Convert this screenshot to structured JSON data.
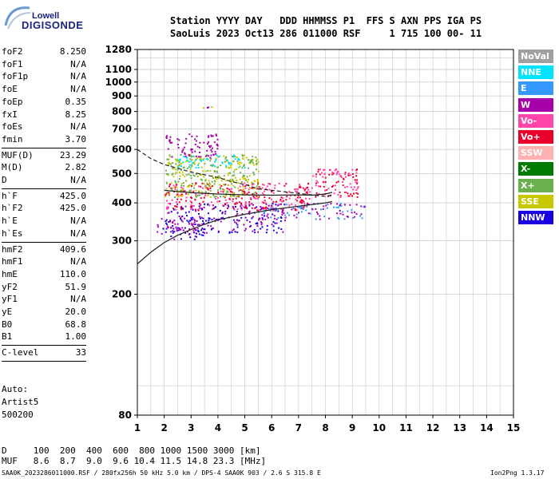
{
  "logo": {
    "top": "Lowell",
    "bottom": "DIGISONDE"
  },
  "header": {
    "line1": "Station YYYY DAY   DDD HHMMSS P1  FFS S AXN PPS IGA PS",
    "line2": "SaoLuis 2023 Oct13 286 011000 RSF     1 715 100 00- 11"
  },
  "params": [
    {
      "label": "foF2",
      "value": "8.250",
      "sep_after": false
    },
    {
      "label": "foF1",
      "value": "N/A",
      "sep_after": false
    },
    {
      "label": "foF1p",
      "value": "N/A",
      "sep_after": false
    },
    {
      "label": "foE",
      "value": "N/A",
      "sep_after": false
    },
    {
      "label": "foEp",
      "value": "0.35",
      "sep_after": false
    },
    {
      "label": "fxI",
      "value": "8.25",
      "sep_after": false
    },
    {
      "label": "foEs",
      "value": "N/A",
      "sep_after": false
    },
    {
      "label": "fmin",
      "value": "3.70",
      "sep_after": true
    },
    {
      "label": "MUF(D)",
      "value": "23.29",
      "sep_after": false
    },
    {
      "label": "M(D)",
      "value": "2.82",
      "sep_after": false
    },
    {
      "label": "D",
      "value": "N/A",
      "sep_after": true
    },
    {
      "label": "h`F",
      "value": "425.0",
      "sep_after": false
    },
    {
      "label": "h`F2",
      "value": "425.0",
      "sep_after": false
    },
    {
      "label": "h`E",
      "value": "N/A",
      "sep_after": false
    },
    {
      "label": "h`Es",
      "value": "N/A",
      "sep_after": true
    },
    {
      "label": "hmF2",
      "value": "409.6",
      "sep_after": false
    },
    {
      "label": "hmF1",
      "value": "N/A",
      "sep_after": false
    },
    {
      "label": "hmE",
      "value": "110.0",
      "sep_after": false
    },
    {
      "label": "yF2",
      "value": "51.9",
      "sep_after": false
    },
    {
      "label": "yF1",
      "value": "N/A",
      "sep_after": false
    },
    {
      "label": "yE",
      "value": "20.0",
      "sep_after": false
    },
    {
      "label": "B0",
      "value": "68.8",
      "sep_after": false
    },
    {
      "label": "B1",
      "value": "1.00",
      "sep_after": true
    },
    {
      "label": "C-level",
      "value": "33",
      "sep_after": true
    }
  ],
  "auto": {
    "line1": "Auto:",
    "line2": "Artist5",
    "line3": "500200"
  },
  "legend": [
    {
      "label": "NoVal",
      "color": "#a0a0a0"
    },
    {
      "label": "NNE",
      "color": "#00e5ff"
    },
    {
      "label": "E",
      "color": "#3399ff"
    },
    {
      "label": "W",
      "color": "#a800a8"
    },
    {
      "label": "Vo-",
      "color": "#ff44aa"
    },
    {
      "label": "Vo+",
      "color": "#e8002a"
    },
    {
      "label": "SSW",
      "color": "#ffb0b0"
    },
    {
      "label": "X-",
      "color": "#007a00"
    },
    {
      "label": "X+",
      "color": "#6ab04c"
    },
    {
      "label": "SSE",
      "color": "#c8c800"
    },
    {
      "label": "NNW",
      "color": "#1a00e0"
    }
  ],
  "chart_data": {
    "type": "scatter",
    "title": "",
    "xlabel": "",
    "ylabel": "",
    "xlim": [
      1,
      15
    ],
    "ylim": [
      80,
      1280
    ],
    "x_ticks": [
      1,
      2,
      3,
      4,
      5,
      6,
      7,
      8,
      9,
      10,
      11,
      12,
      13,
      14,
      15
    ],
    "y_ticks": [
      80,
      200,
      300,
      400,
      500,
      600,
      700,
      800,
      900,
      1000,
      1100,
      1280
    ],
    "y_scale": "log",
    "grid": true,
    "traces": [
      {
        "name": "",
        "x": [
          1.0,
          1.5,
          2,
          2.5,
          3,
          3.5,
          4,
          5,
          6,
          7,
          8,
          8.25
        ],
        "y": [
          252,
          275,
          296,
          313,
          327,
          340,
          352,
          367,
          380,
          390,
          400,
          404
        ]
      },
      {
        "name": "",
        "x": [
          1.0,
          1.5,
          2,
          2.5,
          3,
          3.5,
          4,
          4.5,
          5,
          5.5,
          6,
          7,
          7.5,
          8,
          8.25
        ],
        "y": [
          600,
          560,
          535,
          520,
          505,
          495,
          485,
          470,
          460,
          445,
          440,
          430,
          425,
          420,
          425
        ]
      },
      {
        "name": "",
        "x": [
          2,
          3,
          4,
          5,
          6,
          7,
          7.5,
          8,
          8.25
        ],
        "y": [
          440,
          432,
          428,
          425,
          424,
          425,
          424,
          428,
          433
        ]
      }
    ],
    "echo_clusters": [
      {
        "x_range": [
          1.7,
          3.8
        ],
        "y_range": [
          305,
          360
        ],
        "color": "#1a00e0"
      },
      {
        "x_range": [
          1.7,
          3.8
        ],
        "y_range": [
          305,
          360
        ],
        "color": "#a800a8"
      },
      {
        "x_range": [
          2.0,
          6.5
        ],
        "y_range": [
          320,
          400
        ],
        "color": "#a800a8"
      },
      {
        "x_range": [
          2.0,
          6.5
        ],
        "y_range": [
          320,
          400
        ],
        "color": "#1a00e0"
      },
      {
        "x_range": [
          2.0,
          7.5
        ],
        "y_range": [
          380,
          470
        ],
        "color": "#ff44aa"
      },
      {
        "x_range": [
          2.0,
          7.5
        ],
        "y_range": [
          380,
          470
        ],
        "color": "#e8002a"
      },
      {
        "x_range": [
          2.0,
          5.5
        ],
        "y_range": [
          420,
          580
        ],
        "color": "#c8c800"
      },
      {
        "x_range": [
          2.0,
          5.5
        ],
        "y_range": [
          420,
          580
        ],
        "color": "#6ab04c"
      },
      {
        "x_range": [
          2.5,
          5.0
        ],
        "y_range": [
          520,
          580
        ],
        "color": "#00e5ff"
      },
      {
        "x_range": [
          5.5,
          9.5
        ],
        "y_range": [
          355,
          400
        ],
        "color": "#3399ff"
      },
      {
        "x_range": [
          5.5,
          9.5
        ],
        "y_range": [
          355,
          400
        ],
        "color": "#a800a8"
      },
      {
        "x_range": [
          7.5,
          9.2
        ],
        "y_range": [
          420,
          520
        ],
        "color": "#e8002a"
      },
      {
        "x_range": [
          7.5,
          9.2
        ],
        "y_range": [
          420,
          520
        ],
        "color": "#ff44aa"
      },
      {
        "x_range": [
          2.0,
          4.0
        ],
        "y_range": [
          560,
          680
        ],
        "color": "#a800a8"
      },
      {
        "x_range": [
          3.4,
          3.9
        ],
        "y_range": [
          825,
          835
        ],
        "color": "#c8c800"
      },
      {
        "x_range": [
          3.4,
          3.9
        ],
        "y_range": [
          825,
          835
        ],
        "color": "#a800a8"
      }
    ]
  },
  "bottom": {
    "line1": "D     100  200  400  600  800 1000 1500 3000 [km]",
    "line2": "MUF   8.6  8.7  9.0  9.6 10.4 11.5 14.8 23.3 [MHz]"
  },
  "footer": {
    "left": "SAA0K_2023286011000.RSF / 280fx256h 50 kHz 5.0 km / DPS-4 SAA0K 903 / 2.6 S 315.8 E",
    "right": "Ion2Png 1.3.17"
  }
}
